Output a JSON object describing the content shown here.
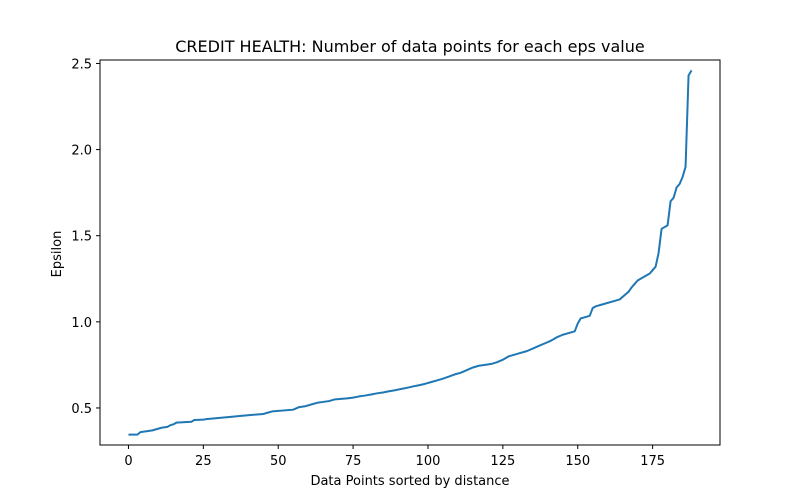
{
  "chart_data": {
    "type": "line",
    "title": "CREDIT HEALTH: Number of data points for each eps value",
    "xlabel": "Data Points sorted by distance",
    "ylabel": "Epsilon",
    "xlim": [
      -9.5,
      197.5
    ],
    "ylim": [
      0.285,
      2.52
    ],
    "xticks": [
      0,
      25,
      50,
      75,
      100,
      125,
      150,
      175
    ],
    "xtick_labels": [
      "0",
      "25",
      "50",
      "75",
      "100",
      "125",
      "150",
      "175"
    ],
    "yticks": [
      0.5,
      1.0,
      1.5,
      2.0,
      2.5
    ],
    "ytick_labels": [
      "0.5",
      "1.0",
      "1.5",
      "2.0",
      "2.5"
    ],
    "grid": false,
    "series": [
      {
        "color": "#1f77b4",
        "x": [
          0,
          3,
          4,
          8,
          9,
          10,
          11,
          13,
          14,
          15,
          16,
          21,
          22,
          25,
          26,
          35,
          38,
          45,
          46,
          47,
          48,
          55,
          57,
          59,
          61,
          63,
          65,
          67,
          69,
          71,
          73,
          75,
          77,
          79,
          81,
          83,
          85,
          87,
          89,
          91,
          93,
          95,
          97,
          99,
          101,
          103,
          105,
          107,
          109,
          111,
          113,
          115,
          117,
          119,
          121,
          123,
          125,
          127,
          129,
          131,
          133,
          135,
          137,
          139,
          141,
          143,
          145,
          147,
          149,
          150,
          151,
          152,
          154,
          155,
          156,
          158,
          160,
          162,
          164,
          166,
          167,
          168,
          169,
          170,
          172,
          174,
          175,
          176,
          177,
          178,
          180,
          181,
          182,
          183,
          184,
          185,
          186,
          187,
          188
        ],
        "y": [
          0.345,
          0.345,
          0.36,
          0.37,
          0.375,
          0.38,
          0.385,
          0.39,
          0.4,
          0.405,
          0.415,
          0.42,
          0.43,
          0.432,
          0.435,
          0.45,
          0.455,
          0.465,
          0.47,
          0.475,
          0.48,
          0.49,
          0.505,
          0.51,
          0.52,
          0.53,
          0.535,
          0.54,
          0.55,
          0.553,
          0.556,
          0.56,
          0.567,
          0.572,
          0.578,
          0.585,
          0.59,
          0.597,
          0.603,
          0.61,
          0.617,
          0.625,
          0.632,
          0.64,
          0.65,
          0.66,
          0.67,
          0.682,
          0.695,
          0.705,
          0.72,
          0.735,
          0.745,
          0.75,
          0.755,
          0.765,
          0.78,
          0.8,
          0.81,
          0.82,
          0.83,
          0.845,
          0.86,
          0.875,
          0.89,
          0.91,
          0.925,
          0.935,
          0.945,
          0.99,
          1.02,
          1.025,
          1.035,
          1.08,
          1.09,
          1.1,
          1.11,
          1.12,
          1.13,
          1.16,
          1.175,
          1.2,
          1.22,
          1.24,
          1.26,
          1.28,
          1.3,
          1.32,
          1.4,
          1.54,
          1.56,
          1.7,
          1.72,
          1.78,
          1.8,
          1.84,
          1.9,
          2.43,
          2.46
        ]
      }
    ]
  }
}
